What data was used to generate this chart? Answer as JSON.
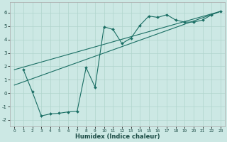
{
  "title": "",
  "xlabel": "Humidex (Indice chaleur)",
  "bg_color": "#cce8e4",
  "line_color": "#1a6e64",
  "grid_color": "#b0d4cc",
  "xlim": [
    -0.5,
    23.5
  ],
  "ylim": [
    -2.5,
    6.8
  ],
  "xticks": [
    0,
    1,
    2,
    3,
    4,
    5,
    6,
    7,
    8,
    9,
    10,
    11,
    12,
    13,
    14,
    15,
    16,
    17,
    18,
    19,
    20,
    21,
    22,
    23
  ],
  "yticks": [
    -2,
    -1,
    0,
    1,
    2,
    3,
    4,
    5,
    6
  ],
  "line1_x": [
    1,
    2,
    3,
    4,
    5,
    6,
    7,
    8,
    9,
    10,
    11,
    12,
    13,
    14,
    15,
    16,
    17,
    18,
    19,
    20,
    21,
    22,
    23
  ],
  "line1_y": [
    1.75,
    0.1,
    -1.7,
    -1.55,
    -1.5,
    -1.4,
    -1.35,
    1.9,
    0.45,
    4.95,
    4.75,
    3.7,
    4.1,
    5.05,
    5.75,
    5.65,
    5.85,
    5.45,
    5.3,
    5.3,
    5.45,
    5.85,
    6.1
  ],
  "line2_x": [
    0,
    23
  ],
  "line2_y": [
    1.75,
    6.1
  ],
  "line3_x": [
    0,
    23
  ],
  "line3_y": [
    0.6,
    6.1
  ]
}
